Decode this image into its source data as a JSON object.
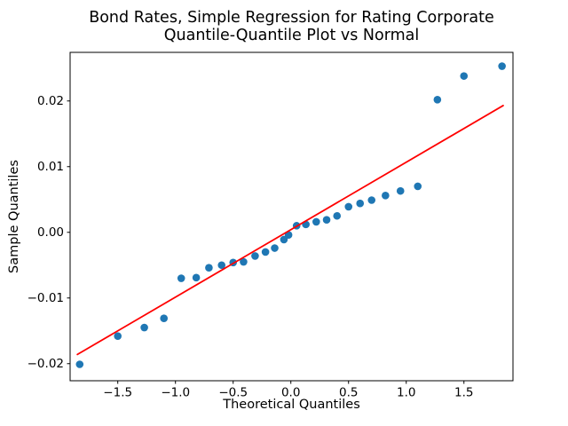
{
  "title": {
    "line1": "Bond Rates, Simple Regression for Rating Corporate",
    "line2": "Quantile-Quantile Plot vs Normal"
  },
  "chart_data": {
    "type": "scatter",
    "title": "Bond Rates, Simple Regression for Rating Corporate\nQuantile-Quantile Plot vs Normal",
    "xlabel": "Theoretical Quantiles",
    "ylabel": "Sample Quantiles",
    "xlim": [
      -1.913,
      1.925
    ],
    "ylim": [
      -0.0226,
      0.0274
    ],
    "x_ticks": [
      -1.5,
      -1.0,
      -0.5,
      0.0,
      0.5,
      1.0,
      1.5
    ],
    "y_ticks": [
      -0.02,
      -0.01,
      0.0,
      0.01,
      0.02
    ],
    "grid": false,
    "legend": null,
    "series": [
      {
        "name": "sample-quantile-points",
        "kind": "scatter",
        "color": "#1f77b4",
        "marker_radius": 4.3,
        "points": [
          [
            -1.83,
            -0.0201
          ],
          [
            -1.5,
            -0.0158
          ],
          [
            -1.27,
            -0.0145
          ],
          [
            -1.1,
            -0.0131
          ],
          [
            -0.95,
            -0.007
          ],
          [
            -0.82,
            -0.0069
          ],
          [
            -0.71,
            -0.0054
          ],
          [
            -0.6,
            -0.005
          ],
          [
            -0.5,
            -0.0046
          ],
          [
            -0.41,
            -0.0045
          ],
          [
            -0.31,
            -0.0036
          ],
          [
            -0.22,
            -0.003
          ],
          [
            -0.14,
            -0.0024
          ],
          [
            -0.06,
            -0.0011
          ],
          [
            -0.02,
            -0.0004
          ],
          [
            0.05,
            0.001
          ],
          [
            0.13,
            0.0012
          ],
          [
            0.22,
            0.0016
          ],
          [
            0.31,
            0.0019
          ],
          [
            0.4,
            0.0025
          ],
          [
            0.5,
            0.0039
          ],
          [
            0.6,
            0.0044
          ],
          [
            0.7,
            0.0049
          ],
          [
            0.82,
            0.0056
          ],
          [
            0.95,
            0.0063
          ],
          [
            1.1,
            0.007
          ],
          [
            1.27,
            0.0202
          ],
          [
            1.5,
            0.0238
          ],
          [
            1.83,
            0.0253
          ]
        ]
      },
      {
        "name": "normal-reference-line",
        "kind": "line",
        "color": "#ff0000",
        "line_width": 1.8,
        "points": [
          [
            -1.85,
            -0.0186
          ],
          [
            1.84,
            0.0193
          ]
        ]
      }
    ]
  },
  "colors": {
    "marker": "#1f77b4",
    "fit_line": "#ff0000",
    "axis": "#000000",
    "background": "#ffffff"
  }
}
